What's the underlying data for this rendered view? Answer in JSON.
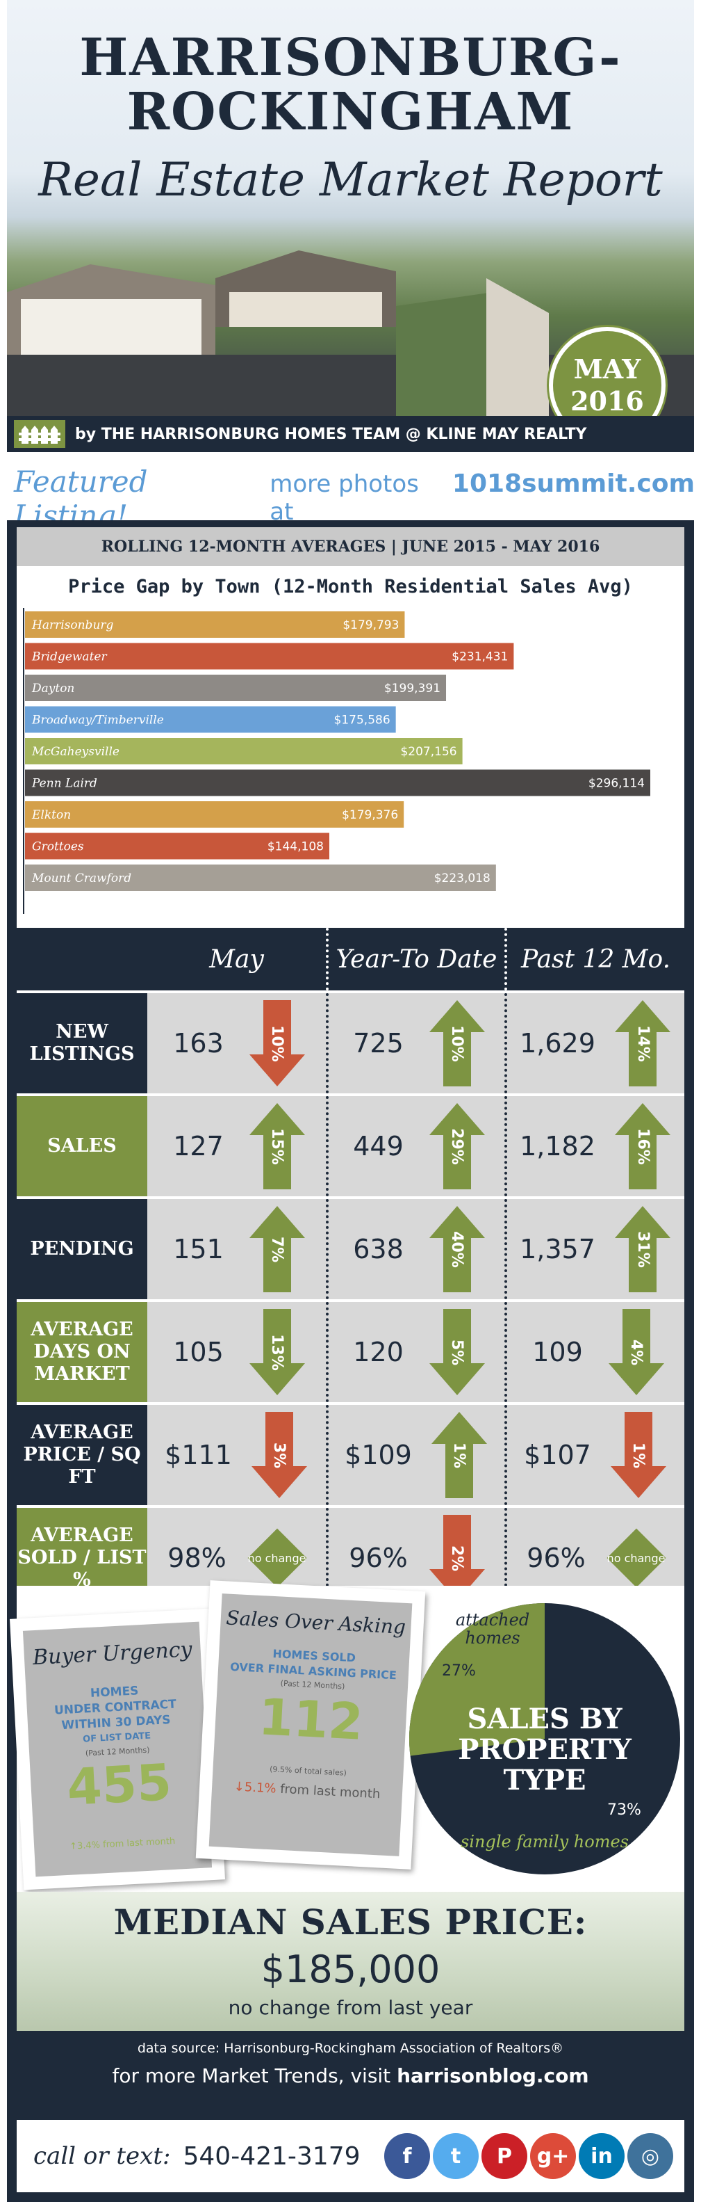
{
  "header": {
    "title_line1": "HARRISONBURG-",
    "title_line2": "ROCKINGHAM",
    "title_line3": "Real Estate Market Report",
    "badge_month": "MAY",
    "badge_year": "2016",
    "byline": "by THE HARRISONBURG HOMES TEAM @ KLINE MAY REALTY"
  },
  "featured": {
    "script": "Featured Listing!",
    "rest": "more photos at",
    "url": "1018summit.com"
  },
  "rolling_title": "ROLLING 12-MONTH AVERAGES | JUNE 2015 - MAY 2016",
  "chart_data": {
    "type": "bar",
    "orientation": "horizontal",
    "title": "Price Gap by Town (12-Month Residential Sales Avg)",
    "categories": [
      "Harrisonburg",
      "Bridgewater",
      "Dayton",
      "Broadway/Timberville",
      "McGaheysville",
      "Penn Laird",
      "Elkton",
      "Grottoes",
      "Mount Crawford"
    ],
    "values": [
      179793,
      231431,
      199391,
      175586,
      207156,
      296114,
      179376,
      144108,
      223018
    ],
    "value_labels": [
      "$179,793",
      "$231,431",
      "$199,391",
      "$175,586",
      "$207,156",
      "$296,114",
      "$179,376",
      "$144,108",
      "$223,018"
    ],
    "colors": [
      "#d4a04a",
      "#c8573a",
      "#8e8a86",
      "#6aa1d8",
      "#a5b55c",
      "#4a4746",
      "#d4a04a",
      "#c8573a",
      "#a59f96"
    ],
    "xlim": [
      0,
      296114
    ],
    "grid": false
  },
  "stats": {
    "headers": [
      "May",
      "Year-To Date",
      "Past 12 Mo."
    ],
    "rows": [
      {
        "label": "NEW LISTINGS",
        "label_color": "#1e2a3a",
        "cells": [
          {
            "value": "163",
            "dir": "down",
            "pct": "10%",
            "color": "#c8573a"
          },
          {
            "value": "725",
            "dir": "up",
            "pct": "10%",
            "color": "#7d9442"
          },
          {
            "value": "1,629",
            "dir": "up",
            "pct": "14%",
            "color": "#7d9442"
          }
        ]
      },
      {
        "label": "SALES",
        "label_color": "#7d9442",
        "cells": [
          {
            "value": "127",
            "dir": "up",
            "pct": "15%",
            "color": "#7d9442"
          },
          {
            "value": "449",
            "dir": "up",
            "pct": "29%",
            "color": "#7d9442"
          },
          {
            "value": "1,182",
            "dir": "up",
            "pct": "16%",
            "color": "#7d9442"
          }
        ]
      },
      {
        "label": "PENDING",
        "label_color": "#1e2a3a",
        "cells": [
          {
            "value": "151",
            "dir": "up",
            "pct": "7%",
            "color": "#7d9442"
          },
          {
            "value": "638",
            "dir": "up",
            "pct": "40%",
            "color": "#7d9442"
          },
          {
            "value": "1,357",
            "dir": "up",
            "pct": "31%",
            "color": "#7d9442"
          }
        ]
      },
      {
        "label": "AVERAGE DAYS ON MARKET",
        "label_color": "#7d9442",
        "cells": [
          {
            "value": "105",
            "dir": "down",
            "pct": "13%",
            "color": "#7d9442"
          },
          {
            "value": "120",
            "dir": "down",
            "pct": "5%",
            "color": "#7d9442"
          },
          {
            "value": "109",
            "dir": "down",
            "pct": "4%",
            "color": "#7d9442"
          }
        ]
      },
      {
        "label": "AVERAGE PRICE / SQ FT",
        "label_color": "#1e2a3a",
        "cells": [
          {
            "value": "$111",
            "dir": "down",
            "pct": "3%",
            "color": "#c8573a"
          },
          {
            "value": "$109",
            "dir": "up",
            "pct": "1%",
            "color": "#7d9442"
          },
          {
            "value": "$107",
            "dir": "down",
            "pct": "1%",
            "color": "#c8573a"
          }
        ]
      },
      {
        "label": "AVERAGE SOLD / LIST %",
        "label_color": "#7d9442",
        "cells": [
          {
            "value": "98%",
            "dir": "none",
            "pct": "no change",
            "color": "#7d9442"
          },
          {
            "value": "96%",
            "dir": "down",
            "pct": "2%",
            "color": "#c8573a"
          },
          {
            "value": "96%",
            "dir": "none",
            "pct": "no change",
            "color": "#7d9442"
          }
        ]
      }
    ]
  },
  "urgency": {
    "title": "Buyer Urgency",
    "line1": "HOMES",
    "line2": "UNDER CONTRACT",
    "line3": "WITHIN 30 DAYS",
    "line4": "OF LIST DATE",
    "small": "(Past 12 Months)",
    "value": "455",
    "foot": "↑3.4% from last month"
  },
  "asking": {
    "title": "Sales Over Asking",
    "line1": "HOMES SOLD",
    "line2": "OVER FINAL ASKING PRICE",
    "small": "(Past 12 Months)",
    "value": "112",
    "small2": "(9.5% of total sales)",
    "foot_arrow": "↓5.1%",
    "foot_rest": "from last month"
  },
  "property_type": {
    "title_line1": "SALES BY",
    "title_line2": "PROPERTY",
    "title_line3": "TYPE",
    "attached_label": "attached homes",
    "attached_pct": "27%",
    "attached_value": 27,
    "single_label": "single family homes",
    "single_pct": "73%",
    "single_value": 73,
    "attached_color": "#7d9442",
    "single_color": "#1e2a3a"
  },
  "median": {
    "title": "MEDIAN SALES PRICE:",
    "value": "$185,000",
    "note": "no change from last year"
  },
  "source": "data source: Harrisonburg-Rockingham Association of Realtors®",
  "trends_prefix": "for more Market Trends, visit",
  "trends_url": "harrisonblog.com",
  "footer": {
    "call_label": "call or text:",
    "phone": "540-421-3179",
    "social": [
      {
        "name": "facebook-icon",
        "glyph": "f",
        "color": "#3b5998"
      },
      {
        "name": "twitter-icon",
        "glyph": "t",
        "color": "#55acee"
      },
      {
        "name": "pinterest-icon",
        "glyph": "P",
        "color": "#cb2027"
      },
      {
        "name": "googleplus-icon",
        "glyph": "g+",
        "color": "#dd4b39"
      },
      {
        "name": "linkedin-icon",
        "glyph": "in",
        "color": "#007bb5"
      },
      {
        "name": "instagram-icon",
        "glyph": "◎",
        "color": "#3f729b"
      }
    ]
  }
}
